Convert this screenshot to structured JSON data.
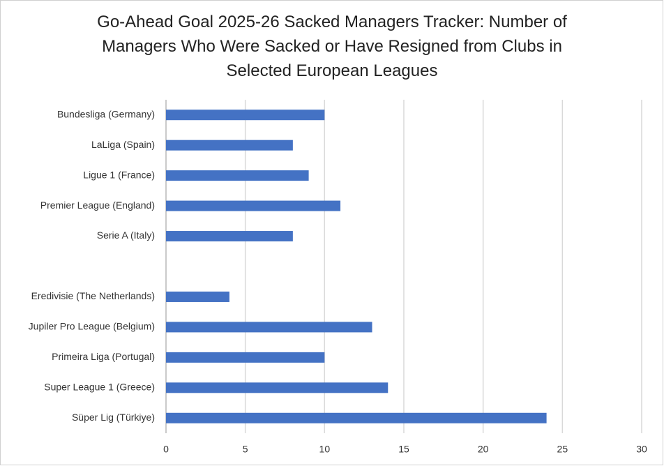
{
  "chart_data": {
    "type": "bar",
    "orientation": "horizontal",
    "title": "Go-Ahead Goal 2025-26 Sacked Managers Tracker: Number of Managers Who Were Sacked or Have Resigned from Clubs in Selected European Leagues",
    "categories": [
      "Bundesliga (Germany)",
      "LaLiga (Spain)",
      "Ligue 1 (France)",
      "Premier League (England)",
      "Serie A (Italy)",
      null,
      "Eredivisie (The Netherlands)",
      "Jupiler Pro League (Belgium)",
      "Primeira Liga (Portugal)",
      "Super League 1 (Greece)",
      "Süper Lig (Türkiye)"
    ],
    "values": [
      10,
      8,
      9,
      11,
      8,
      null,
      4,
      13,
      10,
      14,
      24
    ],
    "color": "#4472c4",
    "xlim": [
      0,
      30
    ],
    "xticks": [
      0,
      5,
      10,
      15,
      20,
      25,
      30
    ],
    "grid": true
  }
}
